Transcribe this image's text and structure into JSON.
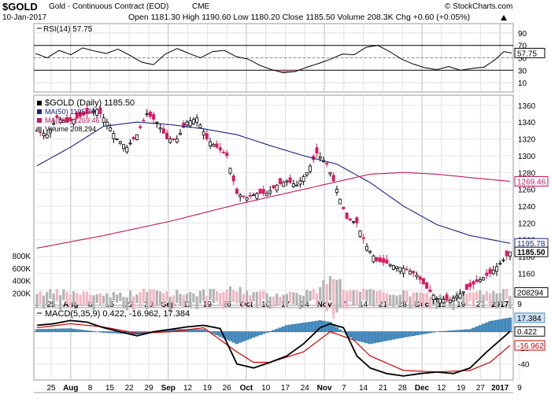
{
  "header": {
    "symbol": "$GOLD",
    "name": "Gold - Continuous Contract (EOD)",
    "exchange": "CME",
    "copyright": "© StockCharts.com",
    "date": "10-Jan-2017",
    "ohlc_text": "Open 1181.30  High 1190.60  Low 1180.20  Close 1185.50  Volume 208.3K  Chg +0.60 (+0.05%)",
    "chg_icon": "up-triangle-icon"
  },
  "chart_data": [
    {
      "type": "line",
      "title": "RSI(14) 57.75",
      "legend": [
        "RSI(14) 57.75"
      ],
      "yticks": [
        10,
        30,
        50,
        70,
        90
      ],
      "ylim": [
        0,
        100
      ],
      "overbought": 70,
      "oversold": 30,
      "last_value_label": "57.75",
      "x_count": 122,
      "series": [
        {
          "name": "RSI(14)",
          "color": "#000000",
          "values_by_x": [
            [
              0,
              57
            ],
            [
              3,
              50
            ],
            [
              6,
              62
            ],
            [
              9,
              55
            ],
            [
              12,
              66
            ],
            [
              15,
              61
            ],
            [
              18,
              57
            ],
            [
              21,
              64
            ],
            [
              24,
              54
            ],
            [
              27,
              43
            ],
            [
              30,
              39
            ],
            [
              33,
              56
            ],
            [
              36,
              65
            ],
            [
              39,
              57
            ],
            [
              42,
              50
            ],
            [
              45,
              60
            ],
            [
              48,
              62
            ],
            [
              51,
              52
            ],
            [
              54,
              48
            ],
            [
              57,
              38
            ],
            [
              60,
              31
            ],
            [
              63,
              26
            ],
            [
              66,
              28
            ],
            [
              69,
              35
            ],
            [
              72,
              41
            ],
            [
              75,
              48
            ],
            [
              78,
              56
            ],
            [
              81,
              55
            ],
            [
              84,
              67
            ],
            [
              87,
              70
            ],
            [
              90,
              60
            ],
            [
              93,
              48
            ],
            [
              96,
              40
            ],
            [
              99,
              34
            ],
            [
              102,
              31
            ],
            [
              105,
              36
            ],
            [
              108,
              30
            ],
            [
              111,
              33
            ],
            [
              114,
              35
            ],
            [
              117,
              48
            ],
            [
              119,
              60
            ],
            [
              121,
              57.75
            ]
          ]
        }
      ]
    },
    {
      "type": "candlestick",
      "title": "$GOLD (Daily) 1185.50",
      "legend": [
        "$GOLD (Daily) 1185.50",
        "MA(50) 1195.78",
        "MA(200) 1269.46",
        "Volume 208,294"
      ],
      "yticks": [
        1140,
        1160,
        1180,
        1200,
        1220,
        1240,
        1260,
        1280,
        1300,
        1320,
        1340,
        1360
      ],
      "ylim": [
        1122,
        1372
      ],
      "close_path": [
        [
          0,
          1330
        ],
        [
          3,
          1325
        ],
        [
          6,
          1345
        ],
        [
          9,
          1340
        ],
        [
          12,
          1345
        ],
        [
          15,
          1350
        ],
        [
          18,
          1355
        ],
        [
          21,
          1340
        ],
        [
          24,
          1320
        ],
        [
          27,
          1310
        ],
        [
          30,
          1325
        ],
        [
          33,
          1350
        ],
        [
          36,
          1340
        ],
        [
          39,
          1320
        ],
        [
          42,
          1320
        ],
        [
          45,
          1340
        ],
        [
          48,
          1345
        ],
        [
          51,
          1320
        ],
        [
          54,
          1310
        ],
        [
          57,
          1300
        ],
        [
          60,
          1255
        ],
        [
          63,
          1250
        ],
        [
          66,
          1255
        ],
        [
          69,
          1255
        ],
        [
          72,
          1265
        ],
        [
          75,
          1270
        ],
        [
          78,
          1265
        ],
        [
          81,
          1280
        ],
        [
          84,
          1303
        ],
        [
          87,
          1290
        ],
        [
          90,
          1260
        ],
        [
          93,
          1225
        ],
        [
          96,
          1220
        ],
        [
          99,
          1192
        ],
        [
          102,
          1175
        ],
        [
          105,
          1172
        ],
        [
          108,
          1168
        ],
        [
          111,
          1165
        ],
        [
          114,
          1158
        ],
        [
          117,
          1142
        ],
        [
          120,
          1130
        ],
        [
          124,
          1128
        ],
        [
          128,
          1138
        ],
        [
          132,
          1150
        ],
        [
          136,
          1160
        ],
        [
          140,
          1176
        ],
        [
          142,
          1185.5
        ]
      ],
      "x_count": 143,
      "series": [
        {
          "name": "MA(50)",
          "color": "#1a237e",
          "values_by_x": [
            [
              0,
              1288
            ],
            [
              10,
              1310
            ],
            [
              20,
              1335
            ],
            [
              30,
              1340
            ],
            [
              40,
              1337
            ],
            [
              50,
              1332
            ],
            [
              60,
              1325
            ],
            [
              70,
              1312
            ],
            [
              80,
              1300
            ],
            [
              90,
              1290
            ],
            [
              100,
              1268
            ],
            [
              110,
              1240
            ],
            [
              120,
              1218
            ],
            [
              130,
              1205
            ],
            [
              142,
              1195.78
            ]
          ]
        },
        {
          "name": "MA(200)",
          "color": "#c2185b",
          "values_by_x": [
            [
              0,
              1190
            ],
            [
              20,
              1205
            ],
            [
              40,
              1222
            ],
            [
              60,
              1242
            ],
            [
              80,
              1260
            ],
            [
              100,
              1278
            ],
            [
              110,
              1280
            ],
            [
              120,
              1278
            ],
            [
              130,
              1274
            ],
            [
              142,
              1269.46
            ]
          ]
        }
      ],
      "last_labels": {
        "ma50": "1195.78",
        "ma200": "1269.46",
        "close": "1185.50"
      }
    },
    {
      "type": "bar",
      "title": "Volume 208,294",
      "yticks": [
        "200K",
        "400K",
        "600K",
        "800K"
      ],
      "ylim": [
        0,
        900000
      ],
      "last_value_label": "208294",
      "x_count": 143,
      "values_by_x": [
        [
          0,
          220000
        ],
        [
          5,
          200000
        ],
        [
          10,
          210000
        ],
        [
          15,
          190000
        ],
        [
          20,
          180000
        ],
        [
          25,
          175000
        ],
        [
          30,
          200000
        ],
        [
          35,
          240000
        ],
        [
          40,
          195000
        ],
        [
          45,
          210000
        ],
        [
          50,
          200000
        ],
        [
          55,
          220000
        ],
        [
          60,
          260000
        ],
        [
          65,
          200000
        ],
        [
          70,
          180000
        ],
        [
          75,
          190000
        ],
        [
          80,
          210000
        ],
        [
          85,
          240000
        ],
        [
          88,
          560000
        ],
        [
          90,
          440000
        ],
        [
          92,
          300000
        ],
        [
          95,
          220000
        ],
        [
          100,
          210000
        ],
        [
          105,
          200000
        ],
        [
          110,
          190000
        ],
        [
          115,
          180000
        ],
        [
          120,
          160000
        ],
        [
          125,
          180000
        ],
        [
          130,
          190000
        ],
        [
          135,
          200000
        ],
        [
          142,
          208294
        ]
      ]
    },
    {
      "type": "line",
      "title": "MACD(5,35,9) 0.422, -16.962, 17.384",
      "legend": [
        "MACD(5,35,9) 0.422, -16.962, 17.384"
      ],
      "yticks": [
        -40,
        -20,
        0,
        20
      ],
      "ylim": [
        -60,
        30
      ],
      "x_count": 143,
      "series": [
        {
          "name": "MACD",
          "color": "#000000",
          "values_by_x": [
            [
              0,
              8
            ],
            [
              5,
              10
            ],
            [
              10,
              14
            ],
            [
              15,
              12
            ],
            [
              20,
              5
            ],
            [
              25,
              0
            ],
            [
              30,
              -5
            ],
            [
              35,
              0
            ],
            [
              40,
              3
            ],
            [
              45,
              6
            ],
            [
              50,
              8
            ],
            [
              55,
              4
            ],
            [
              60,
              -40
            ],
            [
              65,
              -45
            ],
            [
              70,
              -38
            ],
            [
              75,
              -30
            ],
            [
              80,
              -15
            ],
            [
              85,
              5
            ],
            [
              88,
              10
            ],
            [
              92,
              5
            ],
            [
              96,
              -30
            ],
            [
              100,
              -45
            ],
            [
              105,
              -52
            ],
            [
              110,
              -55
            ],
            [
              115,
              -52
            ],
            [
              120,
              -50
            ],
            [
              125,
              -52
            ],
            [
              130,
              -45
            ],
            [
              135,
              -25
            ],
            [
              142,
              0.422
            ]
          ]
        },
        {
          "name": "Signal",
          "color": "#cc0000",
          "values_by_x": [
            [
              0,
              5
            ],
            [
              10,
              10
            ],
            [
              20,
              6
            ],
            [
              30,
              -2
            ],
            [
              40,
              0
            ],
            [
              50,
              5
            ],
            [
              60,
              -25
            ],
            [
              65,
              -38
            ],
            [
              70,
              -38
            ],
            [
              80,
              -25
            ],
            [
              88,
              0
            ],
            [
              95,
              -10
            ],
            [
              100,
              -30
            ],
            [
              110,
              -48
            ],
            [
              120,
              -50
            ],
            [
              130,
              -48
            ],
            [
              136,
              -38
            ],
            [
              142,
              -16.962
            ]
          ]
        },
        {
          "name": "Histogram",
          "color": "#4a90c4",
          "values_by_x": [
            [
              0,
              3
            ],
            [
              10,
              4
            ],
            [
              20,
              -1
            ],
            [
              30,
              -3
            ],
            [
              40,
              3
            ],
            [
              50,
              3
            ],
            [
              60,
              -15
            ],
            [
              65,
              -7
            ],
            [
              75,
              8
            ],
            [
              85,
              14
            ],
            [
              88,
              12
            ],
            [
              95,
              -10
            ],
            [
              100,
              -15
            ],
            [
              110,
              -7
            ],
            [
              120,
              0
            ],
            [
              130,
              3
            ],
            [
              136,
              13
            ],
            [
              142,
              17.384
            ]
          ]
        }
      ],
      "last_labels": {
        "histogram": "17.384",
        "macd": "0.422",
        "signal": "-16.962"
      }
    }
  ],
  "x_axis": {
    "labels": [
      "25",
      "Aug",
      "8",
      "15",
      "22",
      "29",
      "Sep",
      "12",
      "19",
      "26",
      "Oct",
      "10",
      "17",
      "24",
      "Nov",
      "7",
      "14",
      "21",
      "28",
      "Dec",
      "12",
      "19",
      "27",
      "2017",
      "9"
    ],
    "bold_labels": [
      "Aug",
      "Sep",
      "Oct",
      "Nov",
      "Dec",
      "2017"
    ]
  },
  "colors": {
    "up": "#000000",
    "down": "#d81b60",
    "ma50": "#1a237e",
    "ma200": "#c2185b",
    "volume_up": "#b3b3b3",
    "volume_down": "#f4b6c2",
    "hist": "#4a90c4",
    "macd_line": "#000000",
    "signal_line": "#cc0000",
    "rsi_fill_hi": "#4a90c4",
    "rsi_fill_lo": "#d08080"
  }
}
